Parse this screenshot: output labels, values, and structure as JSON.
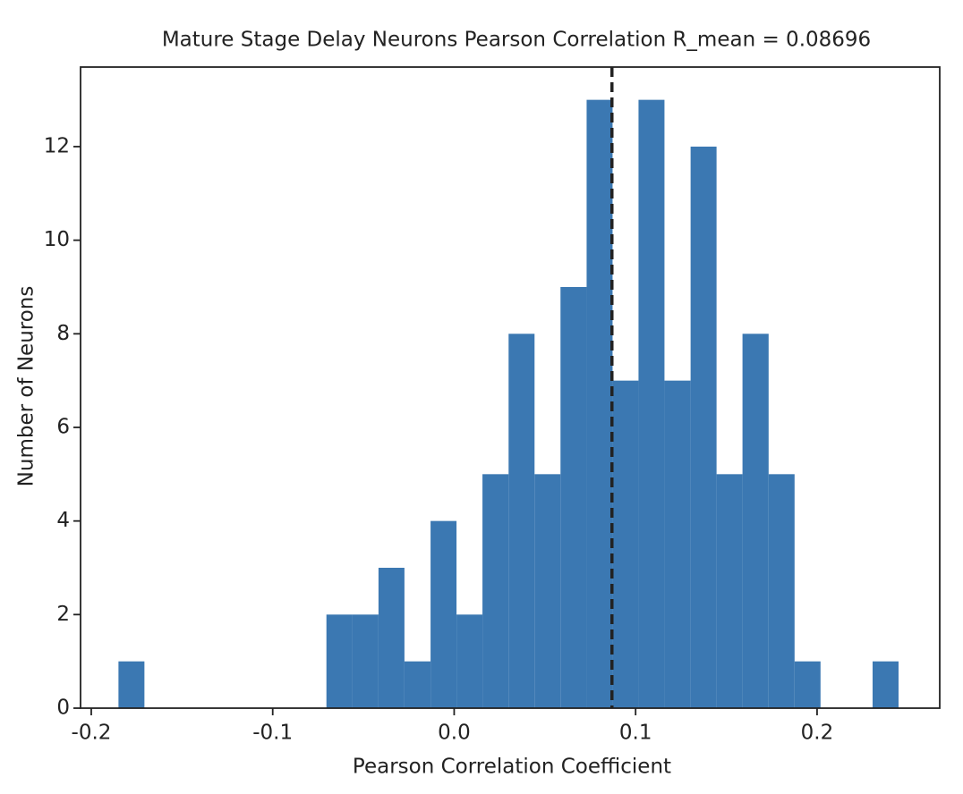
{
  "chart_data": {
    "type": "histogram",
    "title": "Mature Stage Delay Neurons Pearson Correlation R_mean = 0.08696",
    "x_label": "Pearson Correlation Coefficient",
    "y_label": "Number of Neurons",
    "bins": [
      -0.185,
      -0.1707,
      -0.1563,
      -0.142,
      -0.1277,
      -0.1134,
      -0.099,
      -0.0847,
      -0.0704,
      -0.056,
      -0.0417,
      -0.0274,
      -0.013,
      0.0013,
      0.0156,
      0.03,
      0.0443,
      0.0586,
      0.073,
      0.0873,
      0.1016,
      0.1159,
      0.1303,
      0.1446,
      0.1589,
      0.1733,
      0.1876,
      0.2019,
      0.2163,
      0.2306,
      0.2449
    ],
    "values": [
      1,
      0,
      0,
      0,
      0,
      0,
      0,
      0,
      2,
      2,
      3,
      1,
      4,
      2,
      5,
      8,
      5,
      9,
      13,
      7,
      13,
      7,
      12,
      5,
      8,
      5,
      1,
      0,
      0,
      1
    ],
    "color": "#3b78b2",
    "mean_line": 0.08696,
    "mean_line_color": "#222222",
    "xlim": [
      -0.2059,
      0.2676
    ],
    "xticks": [
      -0.2,
      -0.1,
      {
        "value": 0,
        "label": "0.0"
      },
      0.1,
      0.2
    ],
    "ylim": [
      0,
      13.7
    ],
    "yticks": [
      0,
      2,
      4,
      6,
      8,
      10,
      12
    ],
    "grid": false
  }
}
